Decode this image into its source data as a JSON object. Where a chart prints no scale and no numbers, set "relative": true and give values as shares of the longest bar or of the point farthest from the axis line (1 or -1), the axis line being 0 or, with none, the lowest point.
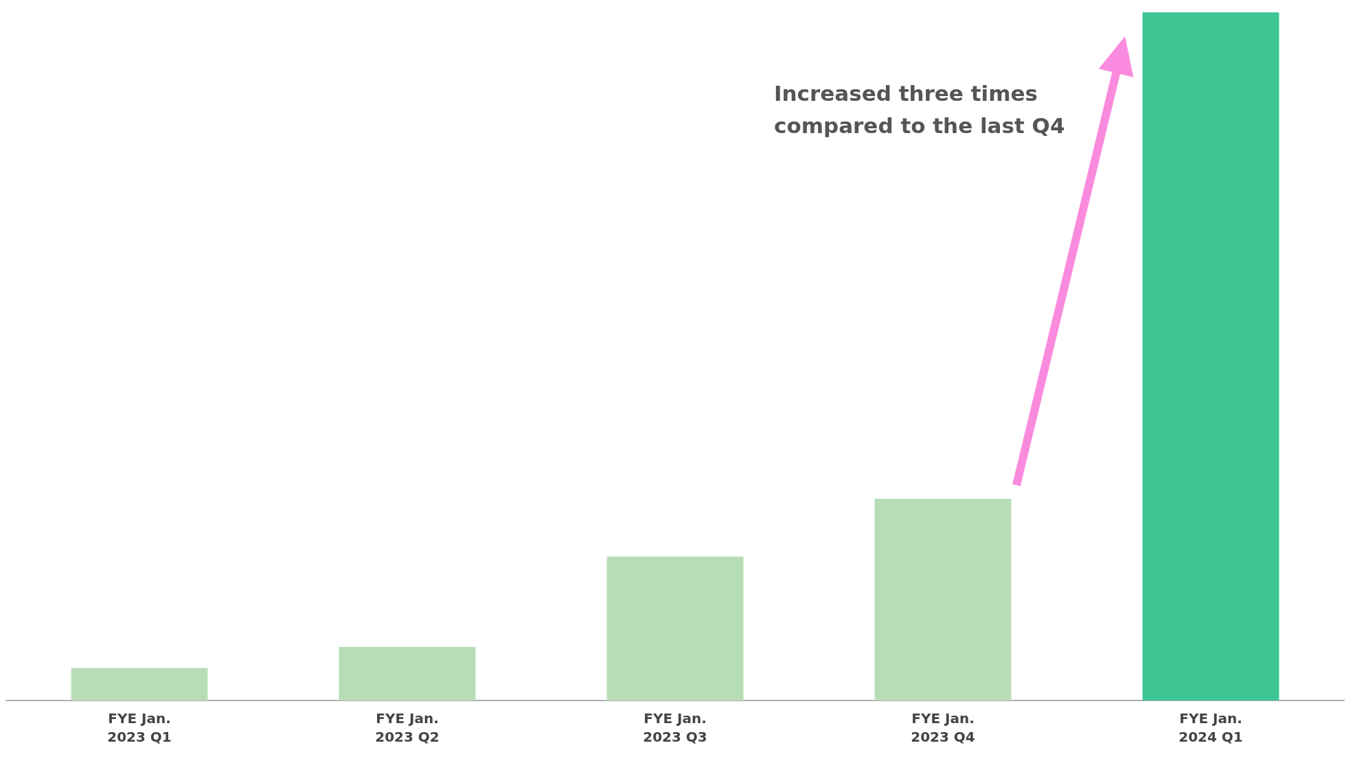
{
  "chart_data": {
    "type": "bar",
    "relative": true,
    "categories": [
      "FYE Jan. 2023 Q1",
      "FYE Jan. 2023 Q2",
      "FYE Jan. 2023 Q3",
      "FYE Jan. 2023 Q4",
      "FYE Jan. 2024 Q1"
    ],
    "values": [
      0.047,
      0.078,
      0.209,
      0.293,
      1
    ],
    "colors": [
      "#b7ddb7",
      "#b7ddb7",
      "#b7ddb7",
      "#b7ddb7",
      "#3ec594"
    ],
    "annotations": [
      "Increased three times compared to the last Q4"
    ],
    "grid": false,
    "legend": false
  }
}
